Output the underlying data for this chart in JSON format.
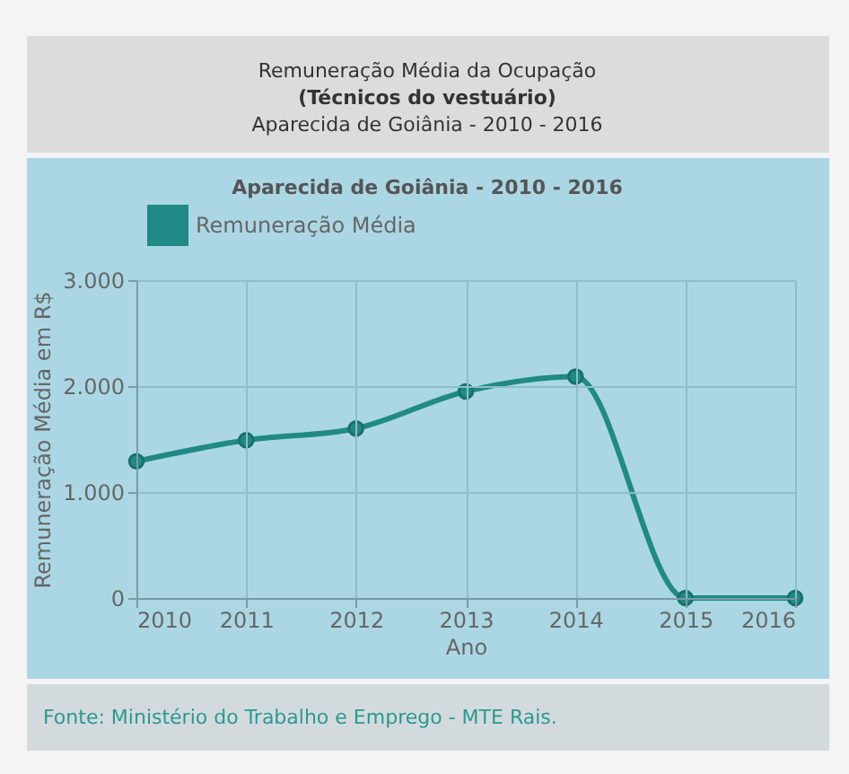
{
  "chart_data": {
    "type": "line",
    "title": "Aparecida de Goiânia -  2010 - 2016",
    "xlabel": "Ano",
    "ylabel": "Remuneração Média em R$",
    "x": [
      2010,
      2011,
      2012,
      2013,
      2014,
      2015,
      2016
    ],
    "series": [
      {
        "name": "Remuneração Média",
        "color": "#1f8a86",
        "values": [
          1290,
          1490,
          1600,
          1950,
          2090,
          0,
          0
        ]
      }
    ],
    "xlim": [
      2010,
      2016
    ],
    "xticks": [
      2010,
      2011,
      2012,
      2013,
      2014,
      2015,
      2016
    ],
    "ylim": [
      0,
      3000
    ],
    "yticks": [
      {
        "value": 0,
        "label": "0"
      },
      {
        "value": 1000,
        "label": "1.000"
      },
      {
        "value": 2000,
        "label": "2.000"
      },
      {
        "value": 3000,
        "label": "3.000"
      }
    ],
    "grid": true,
    "legend": "top",
    "marker": "circle",
    "line_style": "solid",
    "annotations": [
      "Remuneração Média da Ocupação",
      "(Técnicos do vestuário)",
      "Aparecida de Goiânia - 2010 - 2016",
      "Fonte: Ministério do Trabalho e Emprego - MTE Rais."
    ]
  }
}
